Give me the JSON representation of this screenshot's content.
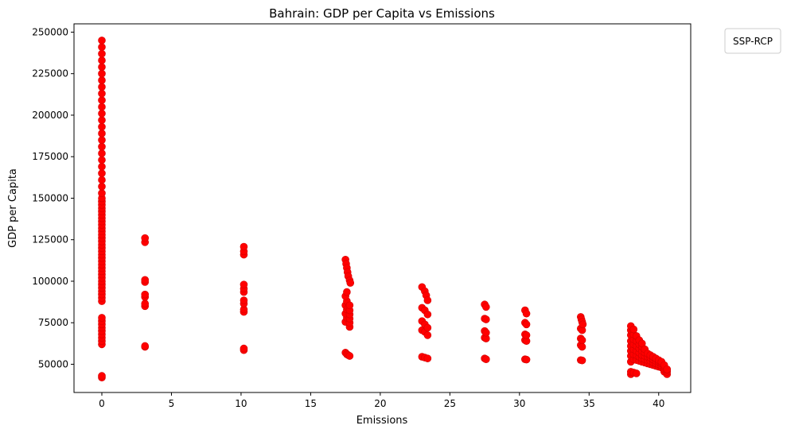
{
  "chart_data": {
    "type": "scatter",
    "title": "Bahrain: GDP per Capita vs Emissions",
    "xlabel": "Emissions",
    "ylabel": "GDP per Capita",
    "xlim": [
      -2.0,
      42.3
    ],
    "ylim": [
      33000,
      255000
    ],
    "xticks": [
      0,
      5,
      10,
      15,
      20,
      25,
      30,
      35,
      40
    ],
    "yticks": [
      50000,
      75000,
      100000,
      125000,
      150000,
      175000,
      200000,
      225000,
      250000
    ],
    "grid": false,
    "legend": {
      "title": "SSP-RCP",
      "placement": "outside-top-right"
    },
    "marker_color": "#ff0000",
    "marker_edge_color": "#d40000",
    "series": [
      {
        "points": [
          [
            0,
            42000
          ],
          [
            0,
            43000
          ],
          [
            0,
            62000
          ],
          [
            0,
            64000
          ],
          [
            0,
            66000
          ],
          [
            0,
            68000
          ],
          [
            0,
            70000
          ],
          [
            0,
            72000
          ],
          [
            0,
            74000
          ],
          [
            0,
            76000
          ],
          [
            0,
            78000
          ],
          [
            0,
            88000
          ],
          [
            0,
            90000
          ],
          [
            0,
            92000
          ],
          [
            0,
            94000
          ],
          [
            0,
            96000
          ],
          [
            0,
            98000
          ],
          [
            0,
            100000
          ],
          [
            0,
            102000
          ],
          [
            0,
            104000
          ],
          [
            0,
            106000
          ],
          [
            0,
            108000
          ],
          [
            0,
            110000
          ],
          [
            0,
            112000
          ],
          [
            0,
            114000
          ],
          [
            0,
            116000
          ],
          [
            0,
            118000
          ],
          [
            0,
            120000
          ],
          [
            0,
            122000
          ],
          [
            0,
            124000
          ],
          [
            0,
            126000
          ],
          [
            0,
            128000
          ],
          [
            0,
            130000
          ],
          [
            0,
            132000
          ],
          [
            0,
            134000
          ],
          [
            0,
            136000
          ],
          [
            0,
            138000
          ],
          [
            0,
            140000
          ],
          [
            0,
            142000
          ],
          [
            0,
            144000
          ],
          [
            0,
            146000
          ],
          [
            0,
            148000
          ],
          [
            0,
            150000
          ],
          [
            0,
            153000
          ],
          [
            0,
            157000
          ],
          [
            0,
            161000
          ],
          [
            0,
            165000
          ],
          [
            0,
            169000
          ],
          [
            0,
            173000
          ],
          [
            0,
            177000
          ],
          [
            0,
            181000
          ],
          [
            0,
            185000
          ],
          [
            0,
            189000
          ],
          [
            0,
            193000
          ],
          [
            0,
            197000
          ],
          [
            0,
            201000
          ],
          [
            0,
            205000
          ],
          [
            0,
            209000
          ],
          [
            0,
            213000
          ],
          [
            0,
            217000
          ],
          [
            0,
            221000
          ],
          [
            0,
            225000
          ],
          [
            0,
            229000
          ],
          [
            0,
            233000
          ],
          [
            0,
            237000
          ],
          [
            0,
            241000
          ],
          [
            0,
            245000
          ],
          [
            3.1,
            60500
          ],
          [
            3.1,
            61000
          ],
          [
            3.1,
            85000
          ],
          [
            3.1,
            86500
          ],
          [
            3.1,
            90500
          ],
          [
            3.1,
            92000
          ],
          [
            3.1,
            99500
          ],
          [
            3.1,
            100800
          ],
          [
            3.1,
            123500
          ],
          [
            3.1,
            126000
          ],
          [
            10.2,
            58500
          ],
          [
            10.2,
            59500
          ],
          [
            10.2,
            81500
          ],
          [
            10.2,
            83000
          ],
          [
            10.2,
            86500
          ],
          [
            10.2,
            88500
          ],
          [
            10.2,
            93500
          ],
          [
            10.2,
            95500
          ],
          [
            10.2,
            98000
          ],
          [
            10.2,
            116000
          ],
          [
            10.2,
            118000
          ],
          [
            10.2,
            120800
          ],
          [
            17.5,
            57000
          ],
          [
            17.6,
            56000
          ],
          [
            17.7,
            55500
          ],
          [
            17.8,
            55000
          ],
          [
            17.5,
            75500
          ],
          [
            17.6,
            78000
          ],
          [
            17.5,
            80500
          ],
          [
            17.6,
            83000
          ],
          [
            17.5,
            85500
          ],
          [
            17.6,
            88000
          ],
          [
            17.5,
            91000
          ],
          [
            17.6,
            93500
          ],
          [
            17.7,
            84000
          ],
          [
            17.8,
            72500
          ],
          [
            17.8,
            75000
          ],
          [
            17.8,
            77500
          ],
          [
            17.8,
            80000
          ],
          [
            17.8,
            82500
          ],
          [
            17.8,
            85500
          ],
          [
            17.5,
            113000
          ],
          [
            17.55,
            110500
          ],
          [
            17.6,
            108000
          ],
          [
            17.65,
            105500
          ],
          [
            17.7,
            103000
          ],
          [
            17.8,
            100500
          ],
          [
            17.85,
            99000
          ],
          [
            23.0,
            54500
          ],
          [
            23.2,
            54000
          ],
          [
            23.4,
            53500
          ],
          [
            23.0,
            70500
          ],
          [
            23.2,
            69500
          ],
          [
            23.4,
            67500
          ],
          [
            23.0,
            76000
          ],
          [
            23.2,
            74000
          ],
          [
            23.4,
            72000
          ],
          [
            23.0,
            84000
          ],
          [
            23.2,
            82500
          ],
          [
            23.4,
            80000
          ],
          [
            23.0,
            96500
          ],
          [
            23.2,
            94000
          ],
          [
            23.3,
            91500
          ],
          [
            23.4,
            88500
          ],
          [
            27.5,
            53500
          ],
          [
            27.6,
            53000
          ],
          [
            27.5,
            66000
          ],
          [
            27.6,
            65500
          ],
          [
            27.5,
            70000
          ],
          [
            27.6,
            69000
          ],
          [
            27.5,
            77500
          ],
          [
            27.6,
            77000
          ],
          [
            27.5,
            86000
          ],
          [
            27.6,
            84500
          ],
          [
            30.4,
            53000
          ],
          [
            30.5,
            52800
          ],
          [
            30.4,
            64500
          ],
          [
            30.5,
            64000
          ],
          [
            30.4,
            68000
          ],
          [
            30.5,
            67500
          ],
          [
            30.4,
            75000
          ],
          [
            30.5,
            74000
          ],
          [
            30.4,
            82500
          ],
          [
            30.5,
            80500
          ],
          [
            34.4,
            52500
          ],
          [
            34.5,
            52300
          ],
          [
            34.4,
            61500
          ],
          [
            34.5,
            60500
          ],
          [
            34.4,
            65500
          ],
          [
            34.5,
            64500
          ],
          [
            34.4,
            71500
          ],
          [
            34.5,
            70500
          ],
          [
            34.4,
            78500
          ],
          [
            34.45,
            77000
          ],
          [
            34.5,
            75500
          ],
          [
            34.55,
            74000
          ],
          [
            38.0,
            44000
          ],
          [
            38.0,
            45500
          ],
          [
            38.0,
            51500
          ],
          [
            38.0,
            55000
          ],
          [
            38.0,
            58000
          ],
          [
            38.0,
            61000
          ],
          [
            38.0,
            64000
          ],
          [
            38.0,
            67500
          ],
          [
            38.0,
            70500
          ],
          [
            38.0,
            73000
          ],
          [
            38.2,
            45000
          ],
          [
            38.4,
            44500
          ],
          [
            38.2,
            53000
          ],
          [
            38.2,
            56000
          ],
          [
            38.2,
            59000
          ],
          [
            38.2,
            62000
          ],
          [
            38.2,
            65000
          ],
          [
            38.2,
            68000
          ],
          [
            38.2,
            71000
          ],
          [
            38.4,
            52500
          ],
          [
            38.4,
            55500
          ],
          [
            38.4,
            58000
          ],
          [
            38.4,
            61000
          ],
          [
            38.4,
            64000
          ],
          [
            38.4,
            67000
          ],
          [
            38.6,
            52000
          ],
          [
            38.6,
            54500
          ],
          [
            38.6,
            57000
          ],
          [
            38.6,
            59500
          ],
          [
            38.6,
            62000
          ],
          [
            38.6,
            64500
          ],
          [
            38.8,
            51500
          ],
          [
            38.8,
            53500
          ],
          [
            38.8,
            55500
          ],
          [
            38.8,
            58000
          ],
          [
            38.8,
            60500
          ],
          [
            38.8,
            62500
          ],
          [
            39.0,
            51000
          ],
          [
            39.0,
            53000
          ],
          [
            39.0,
            55000
          ],
          [
            39.0,
            57000
          ],
          [
            39.0,
            59000
          ],
          [
            39.2,
            50500
          ],
          [
            39.2,
            52500
          ],
          [
            39.2,
            54500
          ],
          [
            39.2,
            56500
          ],
          [
            39.4,
            50000
          ],
          [
            39.4,
            52000
          ],
          [
            39.4,
            54000
          ],
          [
            39.4,
            55500
          ],
          [
            39.6,
            49500
          ],
          [
            39.6,
            51000
          ],
          [
            39.6,
            52800
          ],
          [
            39.6,
            54500
          ],
          [
            39.8,
            49000
          ],
          [
            39.8,
            50500
          ],
          [
            39.8,
            52000
          ],
          [
            39.8,
            53500
          ],
          [
            40.0,
            48500
          ],
          [
            40.0,
            50000
          ],
          [
            40.0,
            51500
          ],
          [
            40.0,
            52500
          ],
          [
            40.2,
            48000
          ],
          [
            40.2,
            49000
          ],
          [
            40.2,
            50500
          ],
          [
            40.2,
            51500
          ],
          [
            40.4,
            45500
          ],
          [
            40.4,
            47000
          ],
          [
            40.4,
            48500
          ],
          [
            40.4,
            49500
          ],
          [
            40.6,
            44000
          ],
          [
            40.6,
            45500
          ],
          [
            40.6,
            46500
          ],
          [
            40.6,
            47000
          ]
        ]
      }
    ]
  }
}
